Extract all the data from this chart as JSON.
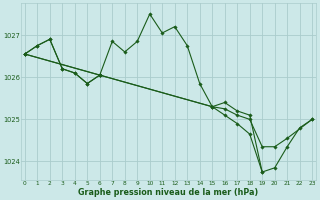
{
  "background_color": "#cce8e8",
  "grid_color": "#aacccc",
  "line_color": "#1a5c1a",
  "marker_color": "#1a5c1a",
  "series": [
    {
      "x": [
        0,
        1,
        2,
        3,
        4,
        5,
        6
      ],
      "y": [
        1026.55,
        1026.75,
        1026.9,
        1026.2,
        1026.1,
        1025.85,
        1026.05
      ]
    },
    {
      "x": [
        0,
        1,
        2,
        3,
        4,
        5,
        6,
        7,
        8,
        9,
        10,
        11,
        12,
        13,
        14,
        15,
        16,
        17,
        18,
        19,
        20,
        21,
        22,
        23
      ],
      "y": [
        1026.55,
        1026.75,
        1026.9,
        1026.2,
        1026.1,
        1025.85,
        1026.05,
        1026.85,
        1026.6,
        1026.85,
        1027.5,
        1027.05,
        1027.2,
        1026.75,
        1025.85,
        1025.3,
        1025.4,
        1025.2,
        1025.1,
        1023.75,
        1023.85,
        1024.35,
        1024.8,
        1025.0
      ]
    },
    {
      "x": [
        0,
        6,
        15,
        16,
        17,
        18,
        19,
        20,
        21,
        23
      ],
      "y": [
        1026.55,
        1026.05,
        1025.3,
        1025.25,
        1025.1,
        1025.0,
        1024.35,
        1024.35,
        1024.55,
        1025.0
      ]
    },
    {
      "x": [
        0,
        6,
        15,
        16,
        17,
        18,
        19
      ],
      "y": [
        1026.55,
        1026.05,
        1025.3,
        1025.1,
        1024.9,
        1024.65,
        1023.75
      ]
    }
  ],
  "xlim": [
    -0.3,
    23.3
  ],
  "ylim": [
    1023.55,
    1027.75
  ],
  "yticks": [
    1024,
    1025,
    1026,
    1027
  ],
  "xticks": [
    0,
    1,
    2,
    3,
    4,
    5,
    6,
    7,
    8,
    9,
    10,
    11,
    12,
    13,
    14,
    15,
    16,
    17,
    18,
    19,
    20,
    21,
    22,
    23
  ],
  "xlabel": "Graphe pression niveau de la mer (hPa)"
}
